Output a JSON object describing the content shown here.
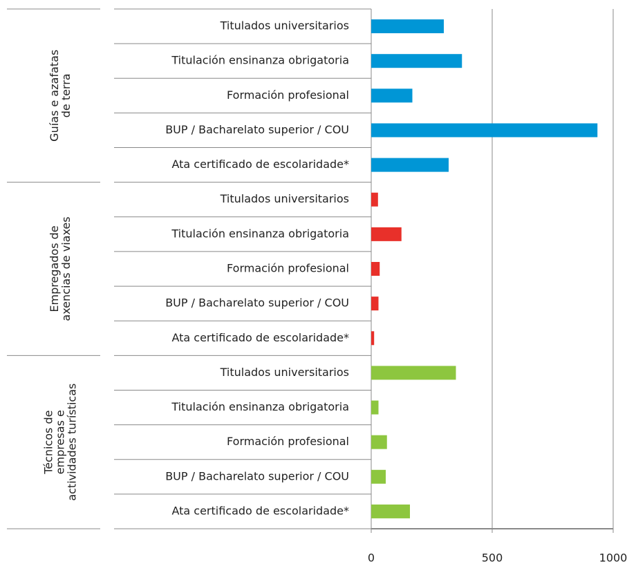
{
  "chart_data": {
    "type": "bar",
    "orientation": "horizontal",
    "groups": [
      {
        "label": [
          "Guías e azafatas",
          "de terra"
        ],
        "color": "#0096d6",
        "categories": [
          "Titulados universitarios",
          "Titulación ensinanza obrigatoria",
          "Formación profesional",
          "BUP / Bacharelato superior / COU",
          "Ata certificado de escolaridade*"
        ],
        "values": [
          300,
          375,
          170,
          935,
          320
        ]
      },
      {
        "label": [
          "Empregados de",
          "axencias de viaxes"
        ],
        "color": "#e8302a",
        "categories": [
          "Titulados universitarios",
          "Titulación ensinanza obrigatoria",
          "Formación profesional",
          "BUP / Bacharelato superior / COU",
          "Ata certificado de escolaridade*"
        ],
        "values": [
          28,
          125,
          35,
          30,
          12
        ]
      },
      {
        "label": [
          "Técnicos de",
          "empresas e",
          "actividades turísticas"
        ],
        "color": "#8dc63f",
        "categories": [
          "Titulados universitarios",
          "Titulación ensinanza obrigatoria",
          "Formación profesional",
          "BUP / Bacharelato superior / COU",
          "Ata certificado de escolaridade*"
        ],
        "values": [
          350,
          30,
          65,
          60,
          160
        ]
      }
    ],
    "xlim": [
      0,
      1000
    ],
    "xticks": [
      0,
      500,
      1000
    ],
    "grid": true
  }
}
